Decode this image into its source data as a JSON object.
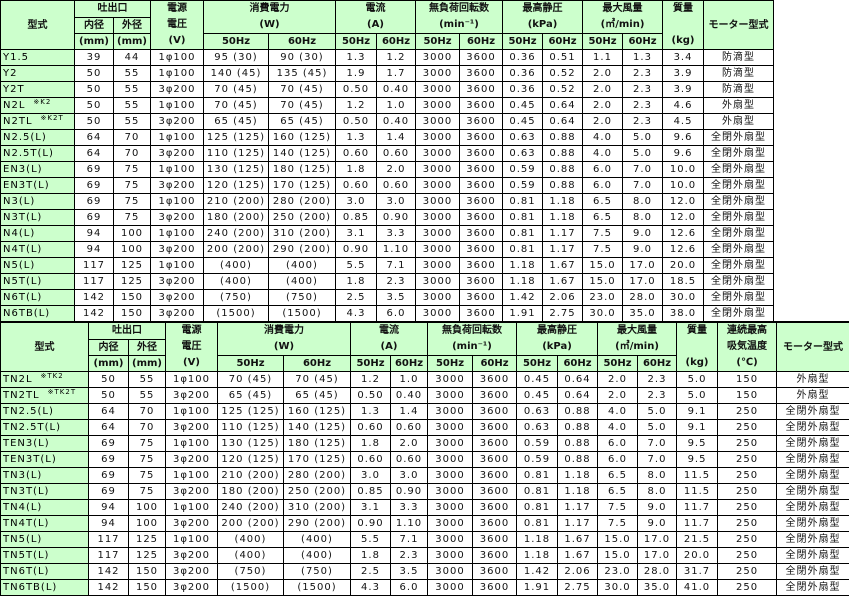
{
  "headers": {
    "model": "型式",
    "outlet": "吐出口",
    "inner": "内径",
    "outer": "外径",
    "mm": "(mm)",
    "power_src_1": "電源",
    "power_src_2": "電圧",
    "power_src_unit": "(V)",
    "consumption": "消費電力",
    "consumption_unit": "(W)",
    "current": "電流",
    "current_unit": "(A)",
    "speed": "無負荷回転数",
    "speed_unit": "(min⁻¹)",
    "pressure": "最高静圧",
    "pressure_unit": "(kPa)",
    "airflow": "最大風量",
    "airflow_unit": "(㎥/min)",
    "mass": "質量",
    "mass_unit": "(kg)",
    "temp_1": "連続最高",
    "temp_2": "吸気温度",
    "temp_unit": "(℃)",
    "motor": "モーター型式",
    "hz50": "50Hz",
    "hz60": "60Hz"
  },
  "top": {
    "rows": [
      [
        "Y1.5",
        "",
        "39",
        "44",
        "1φ100",
        "95 (30)",
        "90 (30)",
        "1.3",
        "1.2",
        "3000",
        "3600",
        "0.36",
        "0.51",
        "1.1",
        "1.3",
        "3.4",
        "防滴型"
      ],
      [
        "Y2",
        "",
        "50",
        "55",
        "1φ100",
        "140 (45)",
        "135 (45)",
        "1.9",
        "1.7",
        "3000",
        "3600",
        "0.36",
        "0.52",
        "2.0",
        "2.3",
        "3.9",
        "防滴型"
      ],
      [
        "Y2T",
        "",
        "50",
        "55",
        "3φ200",
        "70 (45)",
        "70 (45)",
        "0.50",
        "0.40",
        "3000",
        "3600",
        "0.36",
        "0.52",
        "2.0",
        "2.3",
        "3.9",
        "防滴型"
      ],
      [
        "N2L",
        "※K2",
        "50",
        "55",
        "1φ100",
        "70 (45)",
        "70 (45)",
        "1.2",
        "1.0",
        "3000",
        "3600",
        "0.45",
        "0.64",
        "2.0",
        "2.3",
        "4.6",
        "外扇型"
      ],
      [
        "N2TL",
        "※K2T",
        "50",
        "55",
        "3φ200",
        "65 (45)",
        "65 (45)",
        "0.50",
        "0.40",
        "3000",
        "3600",
        "0.45",
        "0.64",
        "2.0",
        "2.3",
        "4.5",
        "外扇型"
      ],
      [
        "N2.5(L)",
        "",
        "64",
        "70",
        "1φ100",
        "125 (125)",
        "160 (125)",
        "1.3",
        "1.4",
        "3000",
        "3600",
        "0.63",
        "0.88",
        "4.0",
        "5.0",
        "9.6",
        "全閉外扇型"
      ],
      [
        "N2.5T(L)",
        "",
        "64",
        "70",
        "3φ200",
        "110 (125)",
        "140 (125)",
        "0.60",
        "0.60",
        "3000",
        "3600",
        "0.63",
        "0.88",
        "4.0",
        "5.0",
        "9.6",
        "全閉外扇型"
      ],
      [
        "EN3(L)",
        "",
        "69",
        "75",
        "1φ100",
        "130 (125)",
        "180 (125)",
        "1.8",
        "2.0",
        "3000",
        "3600",
        "0.59",
        "0.88",
        "6.0",
        "7.0",
        "10.0",
        "全閉外扇型"
      ],
      [
        "EN3T(L)",
        "",
        "69",
        "75",
        "3φ200",
        "120 (125)",
        "170 (125)",
        "0.60",
        "0.60",
        "3000",
        "3600",
        "0.59",
        "0.88",
        "6.0",
        "7.0",
        "10.0",
        "全閉外扇型"
      ],
      [
        "N3(L)",
        "",
        "69",
        "75",
        "1φ100",
        "210 (200)",
        "280 (200)",
        "3.0",
        "3.0",
        "3000",
        "3600",
        "0.81",
        "1.18",
        "6.5",
        "8.0",
        "12.0",
        "全閉外扇型"
      ],
      [
        "N3T(L)",
        "",
        "69",
        "75",
        "3φ200",
        "180 (200)",
        "250 (200)",
        "0.85",
        "0.90",
        "3000",
        "3600",
        "0.81",
        "1.18",
        "6.5",
        "8.0",
        "12.0",
        "全閉外扇型"
      ],
      [
        "N4(L)",
        "",
        "94",
        "100",
        "1φ100",
        "240 (200)",
        "310 (200)",
        "3.1",
        "3.3",
        "3000",
        "3600",
        "0.81",
        "1.17",
        "7.5",
        "9.0",
        "12.6",
        "全閉外扇型"
      ],
      [
        "N4T(L)",
        "",
        "94",
        "100",
        "3φ200",
        "200 (200)",
        "290 (200)",
        "0.90",
        "1.10",
        "3000",
        "3600",
        "0.81",
        "1.17",
        "7.5",
        "9.0",
        "12.6",
        "全閉外扇型"
      ],
      [
        "N5(L)",
        "",
        "117",
        "125",
        "1φ100",
        "(400)",
        "(400)",
        "5.5",
        "7.1",
        "3000",
        "3600",
        "1.18",
        "1.67",
        "15.0",
        "17.0",
        "20.0",
        "全閉外扇型"
      ],
      [
        "N5T(L)",
        "",
        "117",
        "125",
        "3φ200",
        "(400)",
        "(400)",
        "1.8",
        "2.3",
        "3000",
        "3600",
        "1.18",
        "1.67",
        "15.0",
        "17.0",
        "18.5",
        "全閉外扇型"
      ],
      [
        "N6T(L)",
        "",
        "142",
        "150",
        "3φ200",
        "(750)",
        "(750)",
        "2.5",
        "3.5",
        "3000",
        "3600",
        "1.42",
        "2.06",
        "23.0",
        "28.0",
        "30.0",
        "全閉外扇型"
      ],
      [
        "N6TB(L)",
        "",
        "142",
        "150",
        "3φ200",
        "(1500)",
        "(1500)",
        "4.3",
        "6.0",
        "3000",
        "3600",
        "1.91",
        "2.75",
        "30.0",
        "35.0",
        "38.0",
        "全閉外扇型"
      ]
    ]
  },
  "bottom": {
    "rows": [
      [
        "TN2L",
        "※TK2",
        "50",
        "55",
        "1φ100",
        "70 (45)",
        "70 (45)",
        "1.2",
        "1.0",
        "3000",
        "3600",
        "0.45",
        "0.64",
        "2.0",
        "2.3",
        "5.0",
        "150",
        "外扇型"
      ],
      [
        "TN2TL",
        "※TK2T",
        "50",
        "55",
        "3φ200",
        "65 (45)",
        "65 (45)",
        "0.50",
        "0.40",
        "3000",
        "3600",
        "0.45",
        "0.64",
        "2.0",
        "2.3",
        "5.0",
        "150",
        "外扇型"
      ],
      [
        "TN2.5(L)",
        "",
        "64",
        "70",
        "1φ100",
        "125 (125)",
        "160 (125)",
        "1.3",
        "1.4",
        "3000",
        "3600",
        "0.63",
        "0.88",
        "4.0",
        "5.0",
        "9.1",
        "250",
        "全閉外扇型"
      ],
      [
        "TN2.5T(L)",
        "",
        "64",
        "70",
        "3φ200",
        "110 (125)",
        "140 (125)",
        "0.60",
        "0.60",
        "3000",
        "3600",
        "0.63",
        "0.88",
        "4.0",
        "5.0",
        "9.1",
        "250",
        "全閉外扇型"
      ],
      [
        "TEN3(L)",
        "",
        "69",
        "75",
        "1φ100",
        "130 (125)",
        "180 (125)",
        "1.8",
        "2.0",
        "3000",
        "3600",
        "0.59",
        "0.88",
        "6.0",
        "7.0",
        "9.5",
        "250",
        "全閉外扇型"
      ],
      [
        "TEN3T(L)",
        "",
        "69",
        "75",
        "3φ200",
        "120 (125)",
        "170 (125)",
        "0.60",
        "0.60",
        "3000",
        "3600",
        "0.59",
        "0.88",
        "6.0",
        "7.0",
        "9.5",
        "250",
        "全閉外扇型"
      ],
      [
        "TN3(L)",
        "",
        "69",
        "75",
        "1φ100",
        "210 (200)",
        "280 (200)",
        "3.0",
        "3.0",
        "3000",
        "3600",
        "0.81",
        "1.18",
        "6.5",
        "8.0",
        "11.5",
        "250",
        "全閉外扇型"
      ],
      [
        "TN3T(L)",
        "",
        "69",
        "75",
        "3φ200",
        "180 (200)",
        "250 (200)",
        "0.85",
        "0.90",
        "3000",
        "3600",
        "0.81",
        "1.18",
        "6.5",
        "8.0",
        "11.5",
        "250",
        "全閉外扇型"
      ],
      [
        "TN4(L)",
        "",
        "94",
        "100",
        "1φ100",
        "240 (200)",
        "310 (200)",
        "3.1",
        "3.3",
        "3000",
        "3600",
        "0.81",
        "1.17",
        "7.5",
        "9.0",
        "11.7",
        "250",
        "全閉外扇型"
      ],
      [
        "TN4T(L)",
        "",
        "94",
        "100",
        "3φ200",
        "200 (200)",
        "290 (200)",
        "0.90",
        "1.10",
        "3000",
        "3600",
        "0.81",
        "1.17",
        "7.5",
        "9.0",
        "11.7",
        "250",
        "全閉外扇型"
      ],
      [
        "TN5(L)",
        "",
        "117",
        "125",
        "1φ100",
        "(400)",
        "(400)",
        "5.5",
        "7.1",
        "3000",
        "3600",
        "1.18",
        "1.67",
        "15.0",
        "17.0",
        "21.5",
        "250",
        "全閉外扇型"
      ],
      [
        "TN5T(L)",
        "",
        "117",
        "125",
        "3φ200",
        "(400)",
        "(400)",
        "1.8",
        "2.3",
        "3000",
        "3600",
        "1.18",
        "1.67",
        "15.0",
        "17.0",
        "20.0",
        "250",
        "全閉外扇型"
      ],
      [
        "TN6T(L)",
        "",
        "142",
        "150",
        "3φ200",
        "(750)",
        "(750)",
        "2.5",
        "3.5",
        "3000",
        "3600",
        "1.42",
        "2.06",
        "23.0",
        "28.0",
        "31.7",
        "250",
        "全閉外扇型"
      ],
      [
        "TN6TB(L)",
        "",
        "142",
        "150",
        "3φ200",
        "(1500)",
        "(1500)",
        "4.3",
        "6.0",
        "3000",
        "3600",
        "1.91",
        "2.75",
        "30.0",
        "35.0",
        "41.0",
        "250",
        "全閉外扇型"
      ]
    ]
  },
  "colors": {
    "header_bg": "#ccffcc",
    "border": "#000000"
  }
}
